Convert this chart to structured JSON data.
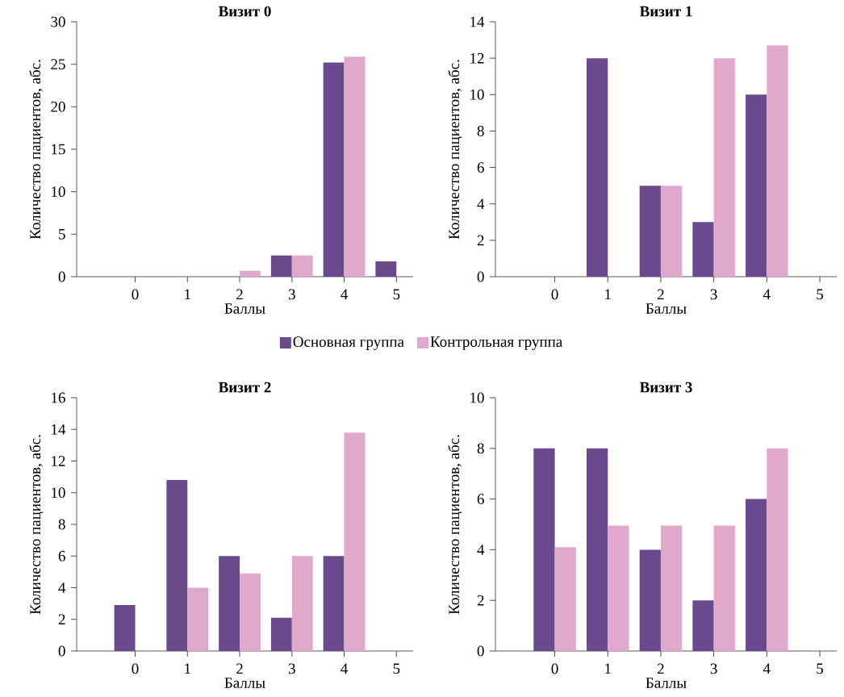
{
  "chart_data": [
    {
      "type": "bar",
      "title": "Визит 0",
      "xlabel": "Баллы",
      "ylabel": "Количество пациентов, абс.",
      "categories": [
        "0",
        "1",
        "2",
        "3",
        "4",
        "5"
      ],
      "ylim": [
        0,
        30
      ],
      "yticks": [
        0,
        5,
        10,
        15,
        20,
        25,
        30
      ],
      "legend": "bottom",
      "series": [
        {
          "name": "Основная группа",
          "color": "#6a4a8c",
          "values": [
            0,
            0,
            0,
            2.5,
            25.2,
            1.8
          ]
        },
        {
          "name": "Контрольная группа",
          "color": "#e0a8cb",
          "values": [
            0,
            0,
            0.7,
            2.5,
            25.9,
            0
          ]
        }
      ]
    },
    {
      "type": "bar",
      "title": "Визит 1",
      "xlabel": "Баллы",
      "ylabel": "Количество пациентов, абс.",
      "categories": [
        "0",
        "1",
        "2",
        "3",
        "4",
        "5"
      ],
      "ylim": [
        0,
        14
      ],
      "yticks": [
        0,
        2,
        4,
        6,
        8,
        10,
        12,
        14
      ],
      "series": [
        {
          "color": "#6a4a8c",
          "values": [
            0,
            12,
            5,
            3,
            10,
            0
          ]
        },
        {
          "color": "#e0a8cb",
          "values": [
            0,
            0,
            5,
            12,
            12.7,
            0
          ]
        }
      ]
    },
    {
      "type": "bar",
      "title": "Визит 2",
      "xlabel": "Баллы",
      "ylabel": "Количество пациентов, абс.",
      "categories": [
        "0",
        "1",
        "2",
        "3",
        "4",
        "5"
      ],
      "ylim": [
        0,
        16
      ],
      "yticks": [
        0,
        2,
        4,
        6,
        8,
        10,
        12,
        14,
        16
      ],
      "series": [
        {
          "color": "#6a4a8c",
          "values": [
            2.9,
            10.8,
            6,
            2.1,
            6,
            0
          ]
        },
        {
          "color": "#e0a8cb",
          "values": [
            0,
            4,
            4.9,
            6,
            13.8,
            0
          ]
        }
      ]
    },
    {
      "type": "bar",
      "title": "Визит 3",
      "xlabel": "Баллы",
      "ylabel": "Количество пациентов, абс.",
      "categories": [
        "0",
        "1",
        "2",
        "3",
        "4",
        "5"
      ],
      "ylim": [
        0,
        10
      ],
      "yticks": [
        0,
        2,
        4,
        6,
        8,
        10
      ],
      "series": [
        {
          "color": "#6a4a8c",
          "values": [
            8,
            8,
            4,
            2,
            6,
            0
          ]
        },
        {
          "color": "#e0a8cb",
          "values": [
            4.1,
            4.95,
            4.95,
            4.95,
            8,
            0
          ]
        }
      ]
    }
  ]
}
